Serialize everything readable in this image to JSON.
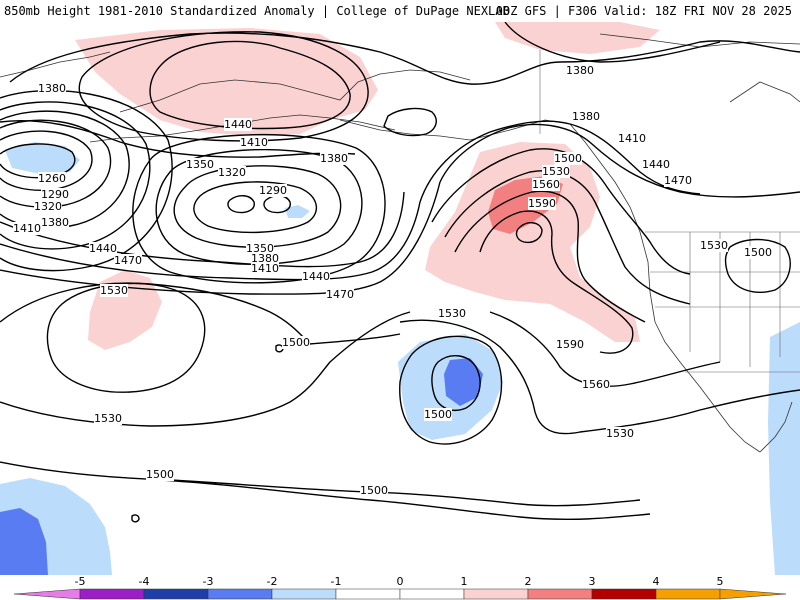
{
  "header": {
    "left_title": "850mb Height 1981-2010 Standardized Anomaly | College of DuPage NEXLAB",
    "right_title": "00Z GFS | F306 Valid: 18Z FRI NOV 28 2025"
  },
  "colors": {
    "anom_neg5": "#e67ce6",
    "anom_neg4": "#9c1fc6",
    "anom_neg3": "#1f3fa8",
    "anom_neg2": "#5a7cf2",
    "anom_neg1": "#bcdcfc",
    "anom_pos1": "#fad2d2",
    "anom_pos2": "#f28080",
    "anom_pos3": "#e63232",
    "anom_pos4": "#b40000",
    "anom_pos5": "#f5a000",
    "contour": "#000000",
    "coastline": "#333333"
  },
  "contour_labels": [
    {
      "id": "1380-nw",
      "text": "1380"
    },
    {
      "id": "1440-alaska",
      "text": "1440"
    },
    {
      "id": "1410-alaska",
      "text": "1410"
    },
    {
      "id": "1380-ne-top",
      "text": "1380"
    },
    {
      "id": "1380-center",
      "text": "1380"
    },
    {
      "id": "1350-low",
      "text": "1350"
    },
    {
      "id": "1320-low",
      "text": "1320"
    },
    {
      "id": "1290-low",
      "text": "1290"
    },
    {
      "id": "1260-west",
      "text": "1260"
    },
    {
      "id": "1290-west",
      "text": "1290"
    },
    {
      "id": "1320-west",
      "text": "1320"
    },
    {
      "id": "1380-west",
      "text": "1380"
    },
    {
      "id": "1410-west",
      "text": "1410"
    },
    {
      "id": "1440-mid",
      "text": "1440"
    },
    {
      "id": "1470-mid",
      "text": "1470"
    },
    {
      "id": "1350-south",
      "text": "1350"
    },
    {
      "id": "1380-south",
      "text": "1380"
    },
    {
      "id": "1410-south",
      "text": "1410"
    },
    {
      "id": "1440-south",
      "text": "1440"
    },
    {
      "id": "1470-south",
      "text": "1470"
    },
    {
      "id": "1380-coast",
      "text": "1380"
    },
    {
      "id": "1410-coast",
      "text": "1410"
    },
    {
      "id": "1440-coast",
      "text": "1440"
    },
    {
      "id": "1470-coast",
      "text": "1470"
    },
    {
      "id": "1500-ridge",
      "text": "1500"
    },
    {
      "id": "1530-ridge",
      "text": "1530"
    },
    {
      "id": "1560-ridge",
      "text": "1560"
    },
    {
      "id": "1590-ridge",
      "text": "1590"
    },
    {
      "id": "1530-west-high",
      "text": "1530"
    },
    {
      "id": "1530-sw",
      "text": "1530"
    },
    {
      "id": "1500-mid",
      "text": "1500"
    },
    {
      "id": "1530-mid",
      "text": "1530"
    },
    {
      "id": "1590-ridge-south",
      "text": "1590"
    },
    {
      "id": "1560-ridge-south",
      "text": "1560"
    },
    {
      "id": "1530-se",
      "text": "1530"
    },
    {
      "id": "1500-cutoff",
      "text": "1500"
    },
    {
      "id": "1530-usa",
      "text": "1530"
    },
    {
      "id": "1500-usa",
      "text": "1500"
    },
    {
      "id": "1500-south-w",
      "text": "1500"
    },
    {
      "id": "1500-south-c",
      "text": "1500"
    }
  ],
  "scale": {
    "ticks": [
      "-5",
      "-4",
      "-3",
      "-2",
      "-1",
      "0",
      "1",
      "2",
      "3",
      "4",
      "5"
    ]
  }
}
